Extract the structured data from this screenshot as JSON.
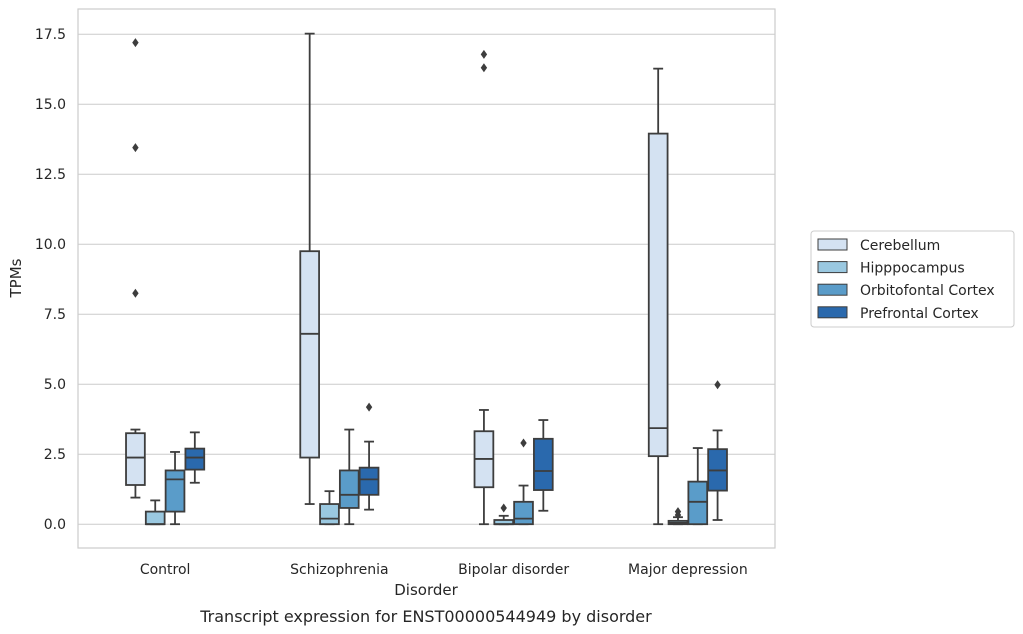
{
  "caption": "Transcript expression for ENST00000544949 by disorder",
  "chart_data": {
    "type": "box",
    "xlabel": "Disorder",
    "ylabel": "TPMs",
    "ylim": [
      -0.85,
      18.4
    ],
    "yticks": [
      "0.0",
      "2.5",
      "5.0",
      "7.5",
      "10.0",
      "12.5",
      "15.0",
      "17.5"
    ],
    "ytick_values": [
      0,
      2.5,
      5,
      7.5,
      10,
      12.5,
      15,
      17.5
    ],
    "grid": "horizontal",
    "legend_position": "right",
    "categories": [
      "Control",
      "Schizophrenia",
      "Bipolar disorder",
      "Major depression"
    ],
    "series": [
      {
        "name": "Cerebellum",
        "color": "#d4e2f2",
        "boxes": [
          {
            "q1": 1.4,
            "median": 2.38,
            "q3": 3.25,
            "whisker_low": 0.95,
            "whisker_high": 3.38,
            "outliers": [
              8.25,
              13.45,
              17.2
            ]
          },
          {
            "q1": 2.38,
            "median": 6.8,
            "q3": 9.75,
            "whisker_low": 0.72,
            "whisker_high": 17.52,
            "outliers": []
          },
          {
            "q1": 1.32,
            "median": 2.33,
            "q3": 3.32,
            "whisker_low": 0.0,
            "whisker_high": 4.08,
            "outliers": [
              16.3,
              16.78
            ]
          },
          {
            "q1": 2.43,
            "median": 3.43,
            "q3": 13.95,
            "whisker_low": 0.0,
            "whisker_high": 16.27,
            "outliers": []
          }
        ]
      },
      {
        "name": "Hipppocampus",
        "color": "#9ac8e0",
        "boxes": [
          {
            "q1": 0.0,
            "median": 0.0,
            "q3": 0.45,
            "whisker_low": 0.0,
            "whisker_high": 0.85,
            "outliers": []
          },
          {
            "q1": 0.0,
            "median": 0.2,
            "q3": 0.72,
            "whisker_low": 0.0,
            "whisker_high": 1.18,
            "outliers": []
          },
          {
            "q1": 0.0,
            "median": 0.0,
            "q3": 0.15,
            "whisker_low": 0.0,
            "whisker_high": 0.3,
            "outliers": [
              0.58
            ]
          },
          {
            "q1": 0.0,
            "median": 0.05,
            "q3": 0.12,
            "whisker_low": 0.0,
            "whisker_high": 0.25,
            "outliers": [
              0.33,
              0.45
            ]
          }
        ]
      },
      {
        "name": "Orbitofontal Cortex",
        "color": "#5a9cc9",
        "boxes": [
          {
            "q1": 0.45,
            "median": 1.6,
            "q3": 1.92,
            "whisker_low": 0.0,
            "whisker_high": 2.58,
            "outliers": []
          },
          {
            "q1": 0.58,
            "median": 1.05,
            "q3": 1.92,
            "whisker_low": 0.0,
            "whisker_high": 3.38,
            "outliers": []
          },
          {
            "q1": 0.0,
            "median": 0.2,
            "q3": 0.8,
            "whisker_low": 0.0,
            "whisker_high": 1.38,
            "outliers": [
              2.9
            ]
          },
          {
            "q1": 0.0,
            "median": 0.8,
            "q3": 1.52,
            "whisker_low": 0.0,
            "whisker_high": 2.72,
            "outliers": []
          }
        ]
      },
      {
        "name": "Prefrontal Cortex",
        "color": "#2a69ad",
        "boxes": [
          {
            "q1": 1.95,
            "median": 2.38,
            "q3": 2.7,
            "whisker_low": 1.48,
            "whisker_high": 3.28,
            "outliers": []
          },
          {
            "q1": 1.05,
            "median": 1.6,
            "q3": 2.02,
            "whisker_low": 0.52,
            "whisker_high": 2.95,
            "outliers": [
              4.18
            ]
          },
          {
            "q1": 1.22,
            "median": 1.9,
            "q3": 3.05,
            "whisker_low": 0.48,
            "whisker_high": 3.72,
            "outliers": []
          },
          {
            "q1": 1.2,
            "median": 1.92,
            "q3": 2.68,
            "whisker_low": 0.15,
            "whisker_high": 3.35,
            "outliers": [
              4.98
            ]
          }
        ]
      }
    ]
  }
}
